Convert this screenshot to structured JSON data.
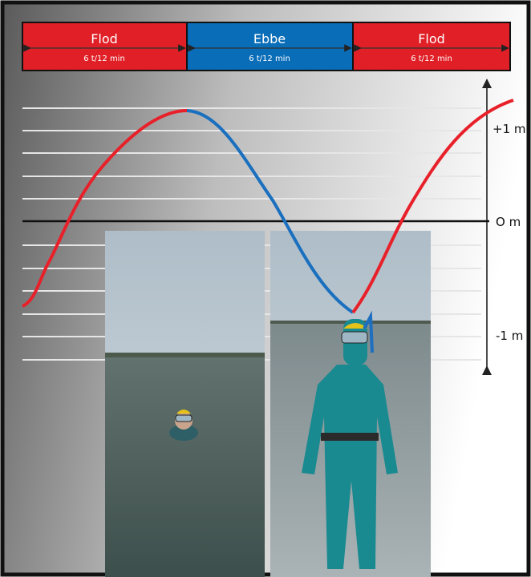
{
  "phases": [
    {
      "label": "Flod",
      "duration": "6 t/12 min"
    },
    {
      "label": "Ebbe",
      "duration": "6 t/12 min"
    },
    {
      "label": "Flod",
      "duration": "6 t/12 min"
    }
  ],
  "levels": [
    "+1 m",
    "O m",
    "-1 m"
  ]
}
